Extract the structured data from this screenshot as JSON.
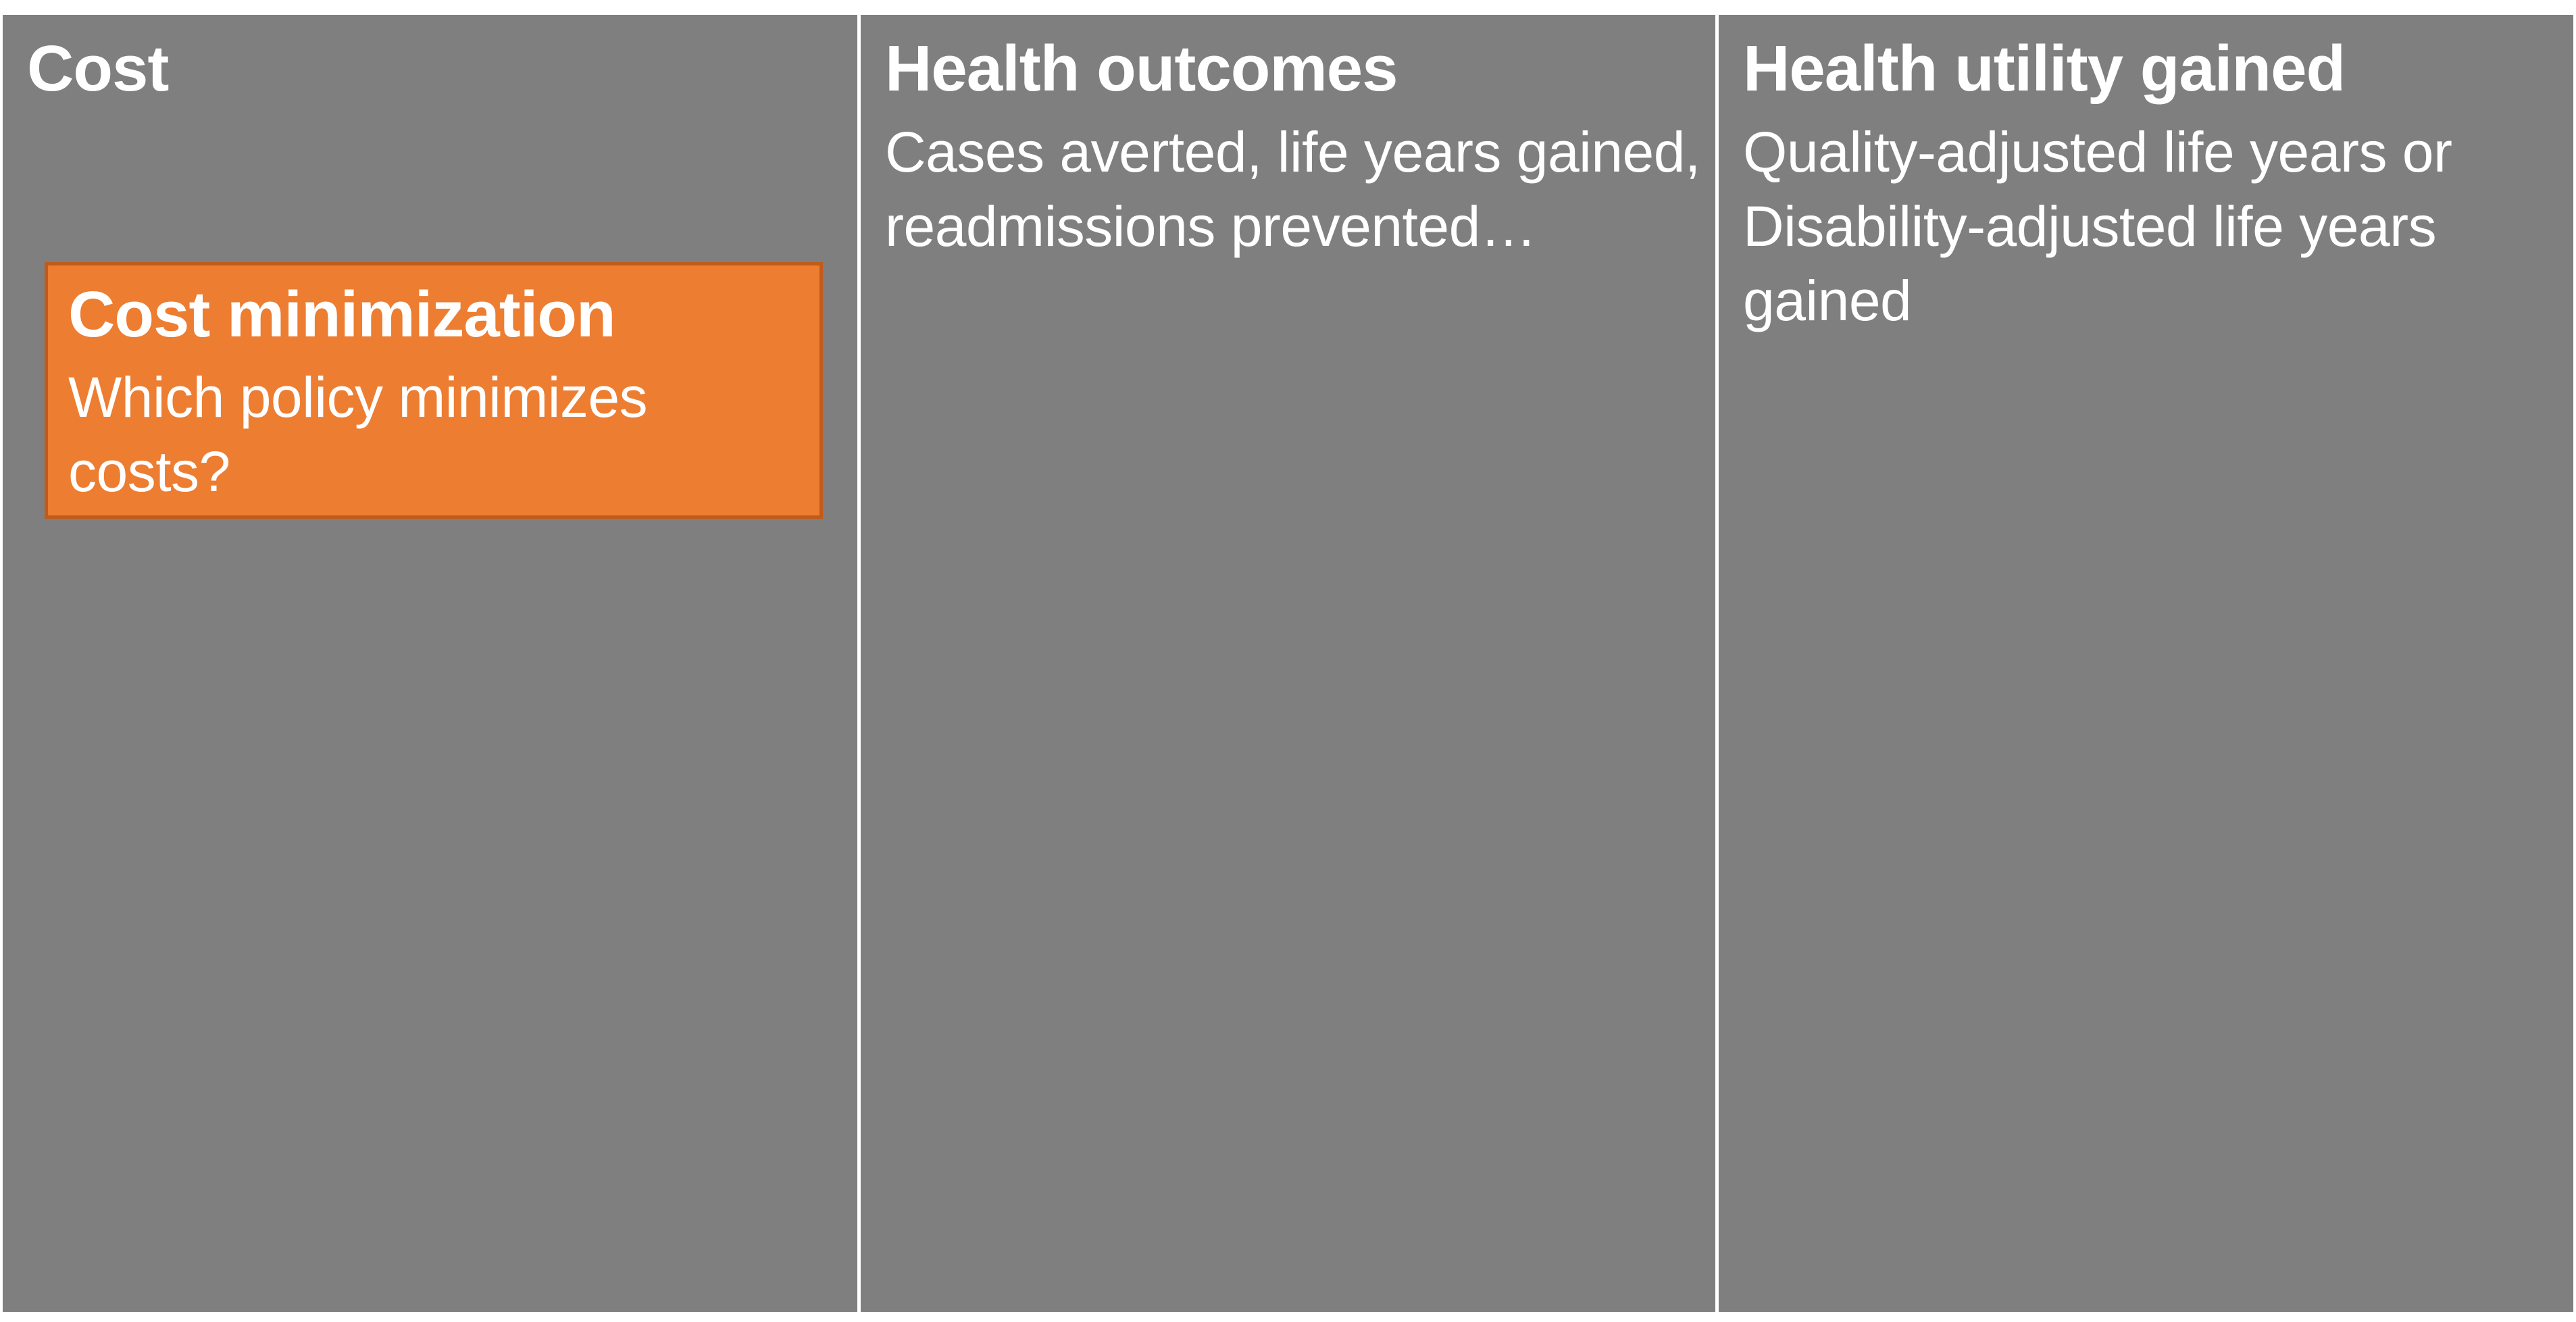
{
  "colors": {
    "column_fill": "#7f7f7f",
    "column_text": "#ffffff",
    "callout_fill": "#ed7d31",
    "callout_border": "#c05b1c",
    "divider": "#ffffff"
  },
  "columns": [
    {
      "title": "Cost",
      "description": ""
    },
    {
      "title": "Health outcomes",
      "description": "Cases averted, life years gained, readmissions prevented…"
    },
    {
      "title": "Health utility gained",
      "description": "Quality-adjusted life years or Disability-adjusted life years gained"
    }
  ],
  "callout": {
    "title": "Cost minimization",
    "question": "Which policy minimizes costs?"
  }
}
